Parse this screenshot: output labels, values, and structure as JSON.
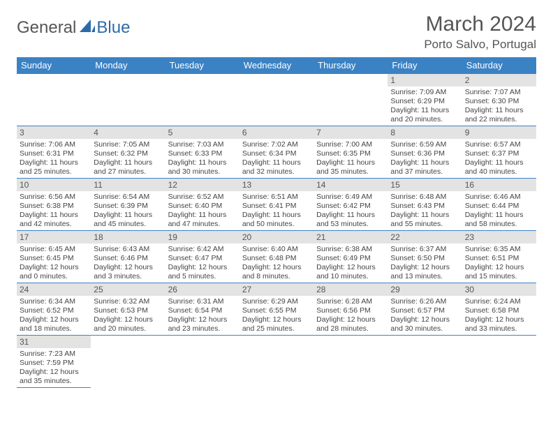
{
  "logo": {
    "general": "General",
    "blue": "Blue"
  },
  "title": "March 2024",
  "location": "Porto Salvo, Portugal",
  "colors": {
    "header_bg": "#3b82c4",
    "header_fg": "#ffffff",
    "daynum_bg": "#e3e3e3",
    "border": "#3b82c4",
    "text": "#444444",
    "title_color": "#555555"
  },
  "weekdays": [
    "Sunday",
    "Monday",
    "Tuesday",
    "Wednesday",
    "Thursday",
    "Friday",
    "Saturday"
  ],
  "leading_blanks": 5,
  "days": [
    {
      "n": "1",
      "sr": "Sunrise: 7:09 AM",
      "ss": "Sunset: 6:29 PM",
      "dl": "Daylight: 11 hours and 20 minutes."
    },
    {
      "n": "2",
      "sr": "Sunrise: 7:07 AM",
      "ss": "Sunset: 6:30 PM",
      "dl": "Daylight: 11 hours and 22 minutes."
    },
    {
      "n": "3",
      "sr": "Sunrise: 7:06 AM",
      "ss": "Sunset: 6:31 PM",
      "dl": "Daylight: 11 hours and 25 minutes."
    },
    {
      "n": "4",
      "sr": "Sunrise: 7:05 AM",
      "ss": "Sunset: 6:32 PM",
      "dl": "Daylight: 11 hours and 27 minutes."
    },
    {
      "n": "5",
      "sr": "Sunrise: 7:03 AM",
      "ss": "Sunset: 6:33 PM",
      "dl": "Daylight: 11 hours and 30 minutes."
    },
    {
      "n": "6",
      "sr": "Sunrise: 7:02 AM",
      "ss": "Sunset: 6:34 PM",
      "dl": "Daylight: 11 hours and 32 minutes."
    },
    {
      "n": "7",
      "sr": "Sunrise: 7:00 AM",
      "ss": "Sunset: 6:35 PM",
      "dl": "Daylight: 11 hours and 35 minutes."
    },
    {
      "n": "8",
      "sr": "Sunrise: 6:59 AM",
      "ss": "Sunset: 6:36 PM",
      "dl": "Daylight: 11 hours and 37 minutes."
    },
    {
      "n": "9",
      "sr": "Sunrise: 6:57 AM",
      "ss": "Sunset: 6:37 PM",
      "dl": "Daylight: 11 hours and 40 minutes."
    },
    {
      "n": "10",
      "sr": "Sunrise: 6:56 AM",
      "ss": "Sunset: 6:38 PM",
      "dl": "Daylight: 11 hours and 42 minutes."
    },
    {
      "n": "11",
      "sr": "Sunrise: 6:54 AM",
      "ss": "Sunset: 6:39 PM",
      "dl": "Daylight: 11 hours and 45 minutes."
    },
    {
      "n": "12",
      "sr": "Sunrise: 6:52 AM",
      "ss": "Sunset: 6:40 PM",
      "dl": "Daylight: 11 hours and 47 minutes."
    },
    {
      "n": "13",
      "sr": "Sunrise: 6:51 AM",
      "ss": "Sunset: 6:41 PM",
      "dl": "Daylight: 11 hours and 50 minutes."
    },
    {
      "n": "14",
      "sr": "Sunrise: 6:49 AM",
      "ss": "Sunset: 6:42 PM",
      "dl": "Daylight: 11 hours and 53 minutes."
    },
    {
      "n": "15",
      "sr": "Sunrise: 6:48 AM",
      "ss": "Sunset: 6:43 PM",
      "dl": "Daylight: 11 hours and 55 minutes."
    },
    {
      "n": "16",
      "sr": "Sunrise: 6:46 AM",
      "ss": "Sunset: 6:44 PM",
      "dl": "Daylight: 11 hours and 58 minutes."
    },
    {
      "n": "17",
      "sr": "Sunrise: 6:45 AM",
      "ss": "Sunset: 6:45 PM",
      "dl": "Daylight: 12 hours and 0 minutes."
    },
    {
      "n": "18",
      "sr": "Sunrise: 6:43 AM",
      "ss": "Sunset: 6:46 PM",
      "dl": "Daylight: 12 hours and 3 minutes."
    },
    {
      "n": "19",
      "sr": "Sunrise: 6:42 AM",
      "ss": "Sunset: 6:47 PM",
      "dl": "Daylight: 12 hours and 5 minutes."
    },
    {
      "n": "20",
      "sr": "Sunrise: 6:40 AM",
      "ss": "Sunset: 6:48 PM",
      "dl": "Daylight: 12 hours and 8 minutes."
    },
    {
      "n": "21",
      "sr": "Sunrise: 6:38 AM",
      "ss": "Sunset: 6:49 PM",
      "dl": "Daylight: 12 hours and 10 minutes."
    },
    {
      "n": "22",
      "sr": "Sunrise: 6:37 AM",
      "ss": "Sunset: 6:50 PM",
      "dl": "Daylight: 12 hours and 13 minutes."
    },
    {
      "n": "23",
      "sr": "Sunrise: 6:35 AM",
      "ss": "Sunset: 6:51 PM",
      "dl": "Daylight: 12 hours and 15 minutes."
    },
    {
      "n": "24",
      "sr": "Sunrise: 6:34 AM",
      "ss": "Sunset: 6:52 PM",
      "dl": "Daylight: 12 hours and 18 minutes."
    },
    {
      "n": "25",
      "sr": "Sunrise: 6:32 AM",
      "ss": "Sunset: 6:53 PM",
      "dl": "Daylight: 12 hours and 20 minutes."
    },
    {
      "n": "26",
      "sr": "Sunrise: 6:31 AM",
      "ss": "Sunset: 6:54 PM",
      "dl": "Daylight: 12 hours and 23 minutes."
    },
    {
      "n": "27",
      "sr": "Sunrise: 6:29 AM",
      "ss": "Sunset: 6:55 PM",
      "dl": "Daylight: 12 hours and 25 minutes."
    },
    {
      "n": "28",
      "sr": "Sunrise: 6:28 AM",
      "ss": "Sunset: 6:56 PM",
      "dl": "Daylight: 12 hours and 28 minutes."
    },
    {
      "n": "29",
      "sr": "Sunrise: 6:26 AM",
      "ss": "Sunset: 6:57 PM",
      "dl": "Daylight: 12 hours and 30 minutes."
    },
    {
      "n": "30",
      "sr": "Sunrise: 6:24 AM",
      "ss": "Sunset: 6:58 PM",
      "dl": "Daylight: 12 hours and 33 minutes."
    },
    {
      "n": "31",
      "sr": "Sunrise: 7:23 AM",
      "ss": "Sunset: 7:59 PM",
      "dl": "Daylight: 12 hours and 35 minutes."
    }
  ]
}
